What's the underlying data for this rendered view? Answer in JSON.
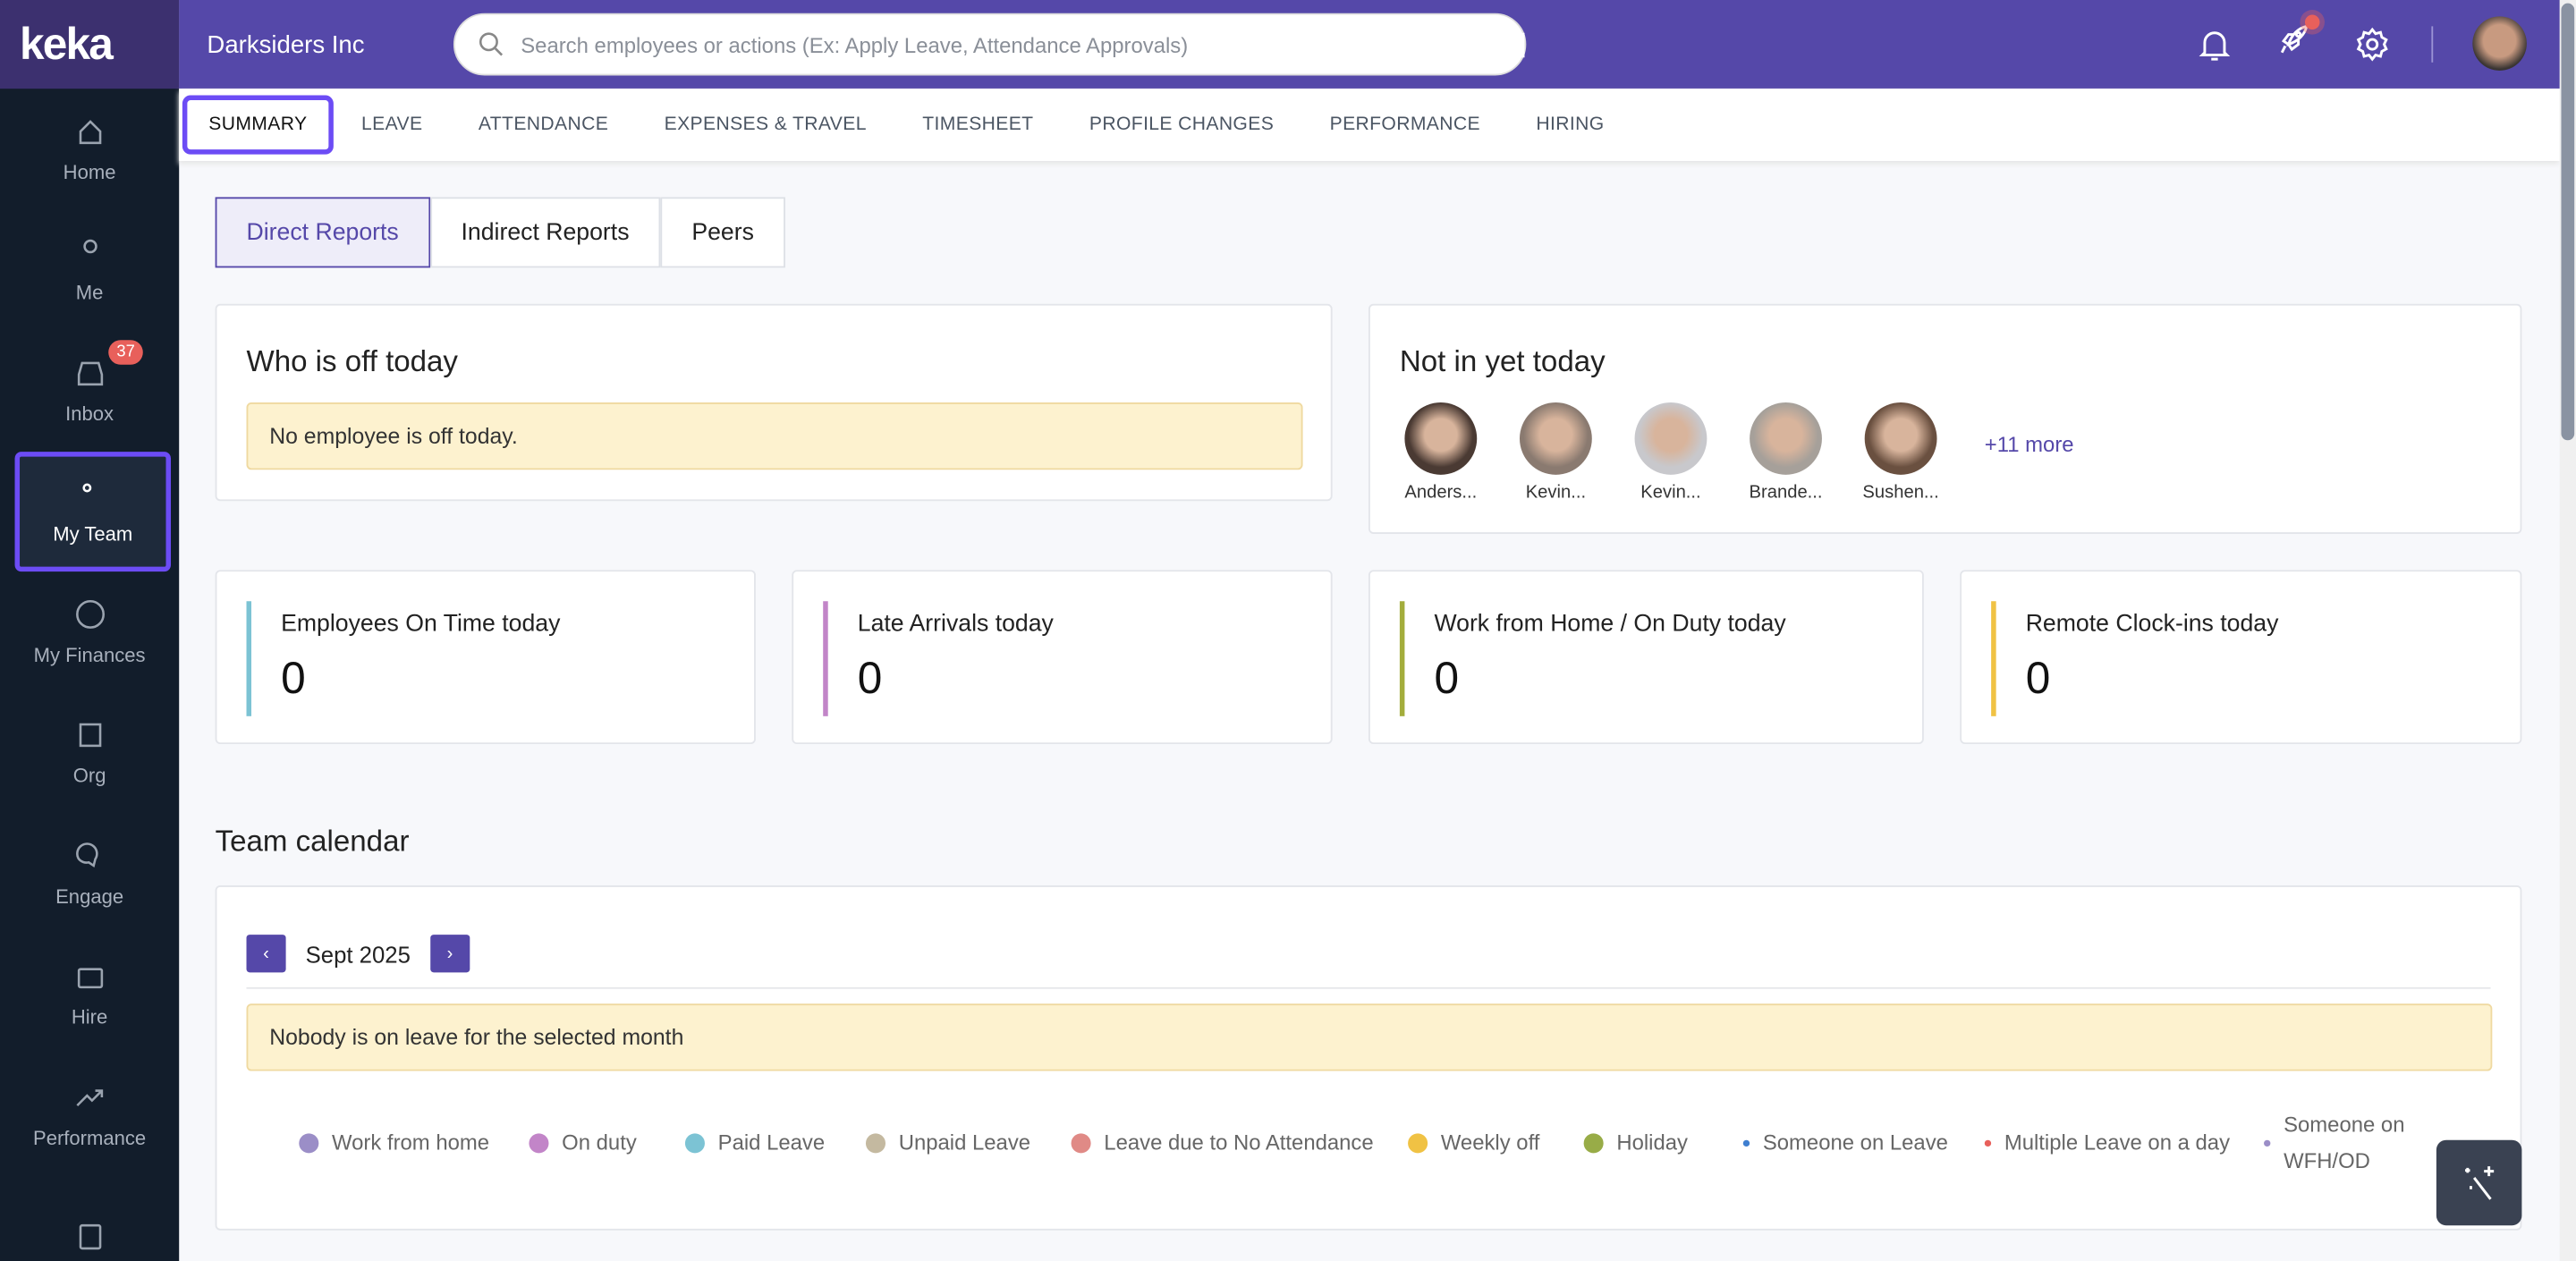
{
  "app": {
    "logo": "keka",
    "org": "Darksiders Inc"
  },
  "search": {
    "placeholder": "Search employees or actions (Ex: Apply Leave, Attendance Approvals)"
  },
  "sidebar": {
    "items": [
      {
        "label": "Home",
        "icon": "home-icon"
      },
      {
        "label": "Me",
        "icon": "user-icon"
      },
      {
        "label": "Inbox",
        "icon": "inbox-icon",
        "badge": "37"
      },
      {
        "label": "My Team",
        "icon": "team-icon",
        "active": true
      },
      {
        "label": "My Finances",
        "icon": "dollar-icon"
      },
      {
        "label": "Org",
        "icon": "building-icon"
      },
      {
        "label": "Engage",
        "icon": "chat-icon"
      },
      {
        "label": "Hire",
        "icon": "briefcase-icon"
      },
      {
        "label": "Performance",
        "icon": "trend-icon"
      },
      {
        "label": "",
        "icon": "clipboard-icon"
      }
    ]
  },
  "tabs": [
    "SUMMARY",
    "LEAVE",
    "ATTENDANCE",
    "EXPENSES & TRAVEL",
    "TIMESHEET",
    "PROFILE CHANGES",
    "PERFORMANCE",
    "HIRING"
  ],
  "segments": [
    "Direct Reports",
    "Indirect Reports",
    "Peers"
  ],
  "off_today": {
    "title": "Who is off today",
    "message": "No employee is off today."
  },
  "not_in": {
    "title": "Not in yet today",
    "people": [
      "Anders...",
      "Kevin...",
      "Kevin...",
      "Brande...",
      "Sushen..."
    ],
    "more": "+11 more"
  },
  "stats": [
    {
      "label": "Employees On Time today",
      "value": "0",
      "color": "#7cc3d4"
    },
    {
      "label": "Late Arrivals today",
      "value": "0",
      "color": "#c285c8"
    },
    {
      "label": "Work from Home / On Duty today",
      "value": "0",
      "color": "#a3ad3c"
    },
    {
      "label": "Remote Clock-ins today",
      "value": "0",
      "color": "#f0c244"
    }
  ],
  "calendar": {
    "title": "Team calendar",
    "month": "Sept 2025",
    "prev": "‹",
    "next": "›",
    "message": "Nobody is on leave for the selected month",
    "legend": [
      {
        "label": "Work from home",
        "color": "#9b8ec7"
      },
      {
        "label": "On duty",
        "color": "#c285c8"
      },
      {
        "label": "Paid Leave",
        "color": "#7cc3d4"
      },
      {
        "label": "Unpaid Leave",
        "color": "#c4b9a0"
      },
      {
        "label": "Leave due to No Attendance",
        "color": "#e08a86"
      },
      {
        "label": "Weekly off",
        "color": "#f0c244"
      },
      {
        "label": "Holiday",
        "color": "#98ac47"
      },
      {
        "label": "Someone on Leave",
        "color": "#3f7fd0",
        "small": true
      },
      {
        "label": "Multiple Leave on a day",
        "color": "#e8605b",
        "small": true
      },
      {
        "label": "Someone on WFH/OD",
        "color": "#9b8ec7",
        "small": true
      }
    ]
  },
  "colors": {
    "header": "#5548a9",
    "sidebar": "#121d2b",
    "accent": "#6c4cf5"
  }
}
